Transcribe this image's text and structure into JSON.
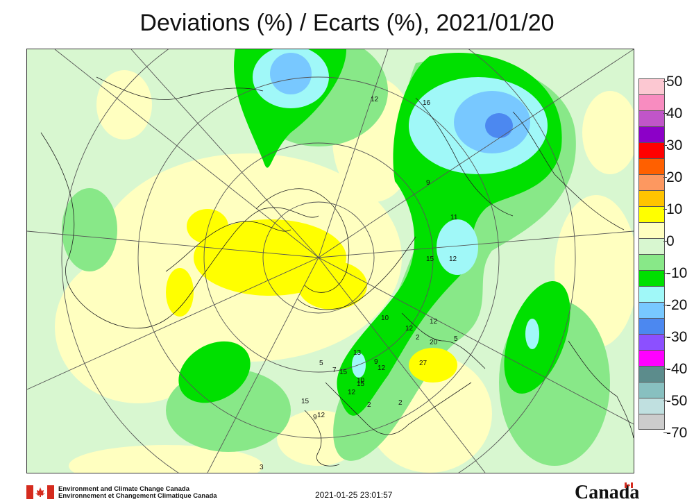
{
  "title": "Deviations (%) / Ecarts (%), 2021/01/20",
  "legend": {
    "entries": [
      {
        "label": "50",
        "color": "#fcc8d2"
      },
      {
        "label": "",
        "color": "#f88cc0"
      },
      {
        "label": "40",
        "color": "#c055c8"
      },
      {
        "label": "",
        "color": "#8c00c8"
      },
      {
        "label": "30",
        "color": "#ff0000"
      },
      {
        "label": "",
        "color": "#ff6000"
      },
      {
        "label": "20",
        "color": "#fd9860"
      },
      {
        "label": "",
        "color": "#ffc400"
      },
      {
        "label": "10",
        "color": "#ffff00"
      },
      {
        "label": "",
        "color": "#ffffc0"
      },
      {
        "label": "0",
        "color": "#d8f7d0"
      },
      {
        "label": "",
        "color": "#88e888"
      },
      {
        "label": "-10",
        "color": "#00e000"
      },
      {
        "label": "",
        "color": "#a0f8f8"
      },
      {
        "label": "-20",
        "color": "#78c8ff"
      },
      {
        "label": "",
        "color": "#4c88f0"
      },
      {
        "label": "-30",
        "color": "#8c50ff"
      },
      {
        "label": "",
        "color": "#ff00ff"
      },
      {
        "label": "-40",
        "color": "#5c8c8c"
      },
      {
        "label": "",
        "color": "#88c0c0"
      },
      {
        "label": "-50",
        "color": "#c0e0e0"
      },
      {
        "label": "",
        "color": "#cccccc"
      },
      {
        "label": "-70",
        "color": ""
      }
    ]
  },
  "station_labels": [
    "12",
    "16",
    "9",
    "11",
    "15",
    "12",
    "12",
    "10",
    "12",
    "2",
    "5",
    "20",
    "27",
    "13",
    "9",
    "12",
    "15",
    "10",
    "15",
    "12",
    "2",
    "15",
    "12",
    "2",
    "9",
    "3",
    "5",
    "7"
  ],
  "footer": {
    "agency_en": "Environment and Climate Change Canada",
    "agency_fr": "Environnement et Changement Climatique Canada",
    "timestamp": "2021-01-25 23:01:57",
    "wordmark": "Canada"
  }
}
